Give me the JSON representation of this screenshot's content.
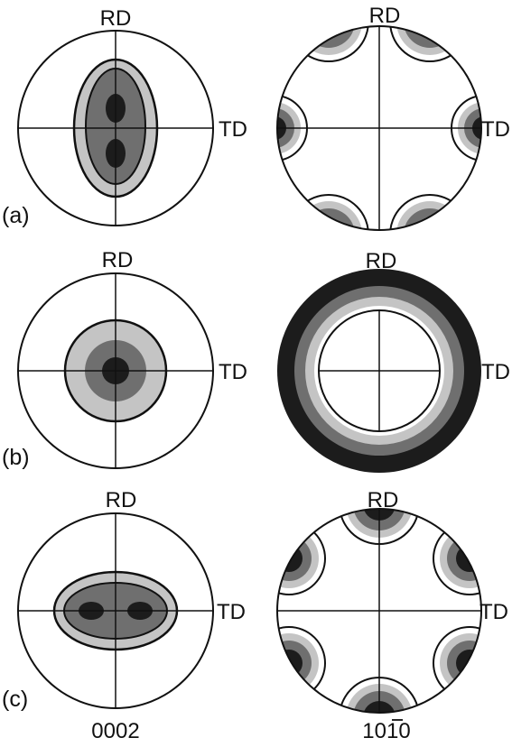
{
  "axis_labels": {
    "rd": "RD",
    "td": "TD"
  },
  "rows": [
    {
      "label": "(a)"
    },
    {
      "label": "(b)"
    },
    {
      "label": "(c)"
    }
  ],
  "columns": [
    {
      "caption": "0002"
    },
    {
      "caption": "1010",
      "overbar": "0"
    }
  ],
  "colors": {
    "outline": "#111111",
    "light_gray": "#c4c4c4",
    "mid_gray": "#6f6f6f",
    "dark": "#1c1c1c",
    "background": "#ffffff"
  }
}
